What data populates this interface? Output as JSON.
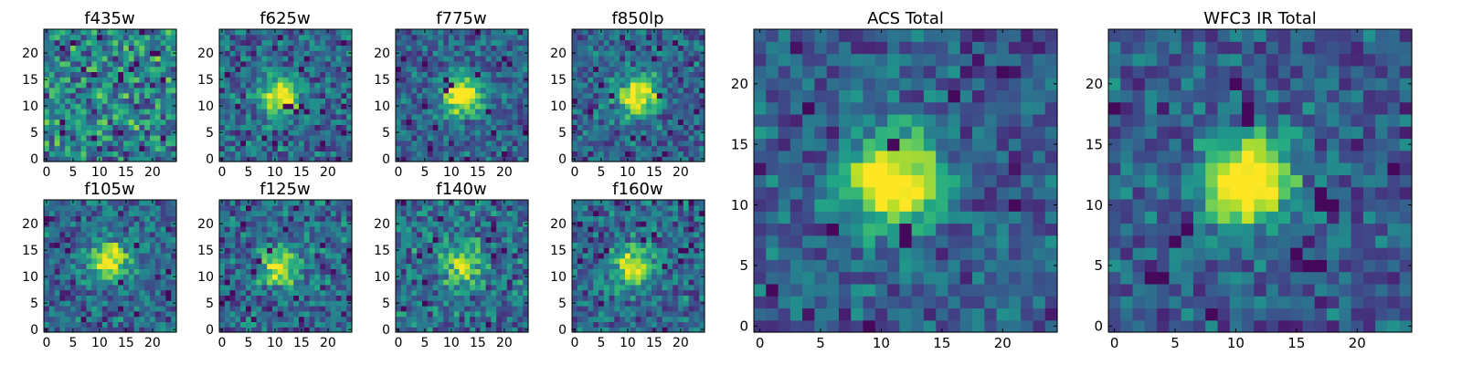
{
  "chart_data": [
    {
      "id": "f435w",
      "type": "heatmap",
      "title": "f435w",
      "xlim": [
        0,
        24
      ],
      "ylim": [
        0,
        24
      ],
      "xticks": [
        0,
        5,
        10,
        15,
        20
      ],
      "yticks": [
        0,
        5,
        10,
        15,
        20
      ],
      "colormap": "viridis",
      "source_peak": {
        "x": 12,
        "y": 12,
        "strength": 0.0
      },
      "seed": 11
    },
    {
      "id": "f625w",
      "type": "heatmap",
      "title": "f625w",
      "xlim": [
        0,
        24
      ],
      "ylim": [
        0,
        24
      ],
      "xticks": [
        0,
        5,
        10,
        15,
        20
      ],
      "yticks": [
        0,
        5,
        10,
        15,
        20
      ],
      "colormap": "viridis",
      "source_peak": {
        "x": 11,
        "y": 12,
        "strength": 0.7
      },
      "seed": 23
    },
    {
      "id": "f775w",
      "type": "heatmap",
      "title": "f775w",
      "xlim": [
        0,
        24
      ],
      "ylim": [
        0,
        24
      ],
      "xticks": [
        0,
        5,
        10,
        15,
        20
      ],
      "yticks": [
        0,
        5,
        10,
        15,
        20
      ],
      "colormap": "viridis",
      "source_peak": {
        "x": 12,
        "y": 12,
        "strength": 0.9
      },
      "seed": 37
    },
    {
      "id": "f850lp",
      "type": "heatmap",
      "title": "f850lp",
      "xlim": [
        0,
        24
      ],
      "ylim": [
        0,
        24
      ],
      "xticks": [
        0,
        5,
        10,
        15,
        20
      ],
      "yticks": [
        0,
        5,
        10,
        15,
        20
      ],
      "colormap": "viridis",
      "source_peak": {
        "x": 12,
        "y": 12,
        "strength": 0.85
      },
      "seed": 41
    },
    {
      "id": "f105w",
      "type": "heatmap",
      "title": "f105w",
      "xlim": [
        0,
        24
      ],
      "ylim": [
        0,
        24
      ],
      "xticks": [
        0,
        5,
        10,
        15,
        20
      ],
      "yticks": [
        0,
        5,
        10,
        15,
        20
      ],
      "colormap": "viridis",
      "source_peak": {
        "x": 12,
        "y": 13,
        "strength": 0.75
      },
      "seed": 53
    },
    {
      "id": "f125w",
      "type": "heatmap",
      "title": "f125w",
      "xlim": [
        0,
        24
      ],
      "ylim": [
        0,
        24
      ],
      "xticks": [
        0,
        5,
        10,
        15,
        20
      ],
      "yticks": [
        0,
        5,
        10,
        15,
        20
      ],
      "colormap": "viridis",
      "source_peak": {
        "x": 11,
        "y": 12,
        "strength": 0.7
      },
      "seed": 67
    },
    {
      "id": "f140w",
      "type": "heatmap",
      "title": "f140w",
      "xlim": [
        0,
        24
      ],
      "ylim": [
        0,
        24
      ],
      "xticks": [
        0,
        5,
        10,
        15,
        20
      ],
      "yticks": [
        0,
        5,
        10,
        15,
        20
      ],
      "colormap": "viridis",
      "source_peak": {
        "x": 12,
        "y": 12,
        "strength": 0.55
      },
      "seed": 79
    },
    {
      "id": "f160w",
      "type": "heatmap",
      "title": "f160w",
      "xlim": [
        0,
        24
      ],
      "ylim": [
        0,
        24
      ],
      "xticks": [
        0,
        5,
        10,
        15,
        20
      ],
      "yticks": [
        0,
        5,
        10,
        15,
        20
      ],
      "colormap": "viridis",
      "source_peak": {
        "x": 11,
        "y": 12,
        "strength": 0.75
      },
      "seed": 89
    },
    {
      "id": "acs_total",
      "type": "heatmap",
      "title": "ACS Total",
      "xlim": [
        0,
        24
      ],
      "ylim": [
        0,
        24
      ],
      "xticks": [
        0,
        5,
        10,
        15,
        20
      ],
      "yticks": [
        0,
        5,
        10,
        15,
        20
      ],
      "colormap": "viridis",
      "source_peak": {
        "x": 11,
        "y": 12,
        "strength": 1.0
      },
      "seed": 97
    },
    {
      "id": "wfc3ir_total",
      "type": "heatmap",
      "title": "WFC3 IR Total",
      "xlim": [
        0,
        24
      ],
      "ylim": [
        0,
        24
      ],
      "xticks": [
        0,
        5,
        10,
        15,
        20
      ],
      "yticks": [
        0,
        5,
        10,
        15,
        20
      ],
      "colormap": "viridis",
      "source_peak": {
        "x": 11,
        "y": 12,
        "strength": 1.0
      },
      "seed": 101
    }
  ]
}
